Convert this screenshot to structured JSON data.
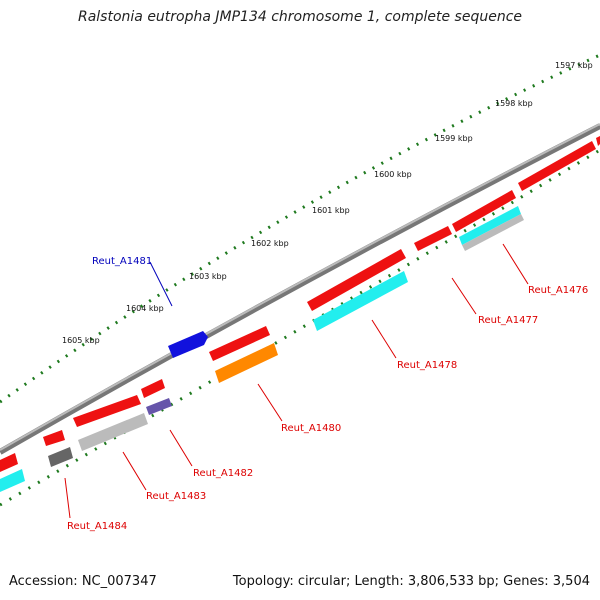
{
  "title": "Ralstonia eutropha JMP134 chromosome 1, complete sequence",
  "footer": {
    "accession": "Accession: NC_007347",
    "summary": "Topology: circular; Length: 3,806,533 bp; Genes: 3,504"
  },
  "ruler": [
    {
      "label": "1597 kbp"
    },
    {
      "label": "1598 kbp"
    },
    {
      "label": "1599 kbp"
    },
    {
      "label": "1600 kbp"
    },
    {
      "label": "1601 kbp"
    },
    {
      "label": "1602 kbp"
    },
    {
      "label": "1603 kbp"
    },
    {
      "label": "1604 kbp"
    },
    {
      "label": "1605 kbp"
    }
  ],
  "gene_labels": [
    {
      "id": "Reut_A1476",
      "color": "#dd0000"
    },
    {
      "id": "Reut_A1477",
      "color": "#dd0000"
    },
    {
      "id": "Reut_A1478",
      "color": "#dd0000"
    },
    {
      "id": "Reut_A1480",
      "color": "#dd0000"
    },
    {
      "id": "Reut_A1481",
      "color": "#0000bb"
    },
    {
      "id": "Reut_A1482",
      "color": "#dd0000"
    },
    {
      "id": "Reut_A1483",
      "color": "#dd0000"
    },
    {
      "id": "Reut_A1484",
      "color": "#dd0000"
    }
  ],
  "colors": {
    "backbone": "#888888",
    "tick_green": "#1f7a1f",
    "gene_red": "#ee1111",
    "cds_cyan": "#22eeee",
    "cds_gray": "#bbbbbb",
    "cds_orange": "#ff8800",
    "gene_blue": "#1111dd",
    "cds_purple": "#6655aa",
    "cds_darkgray": "#666666"
  }
}
